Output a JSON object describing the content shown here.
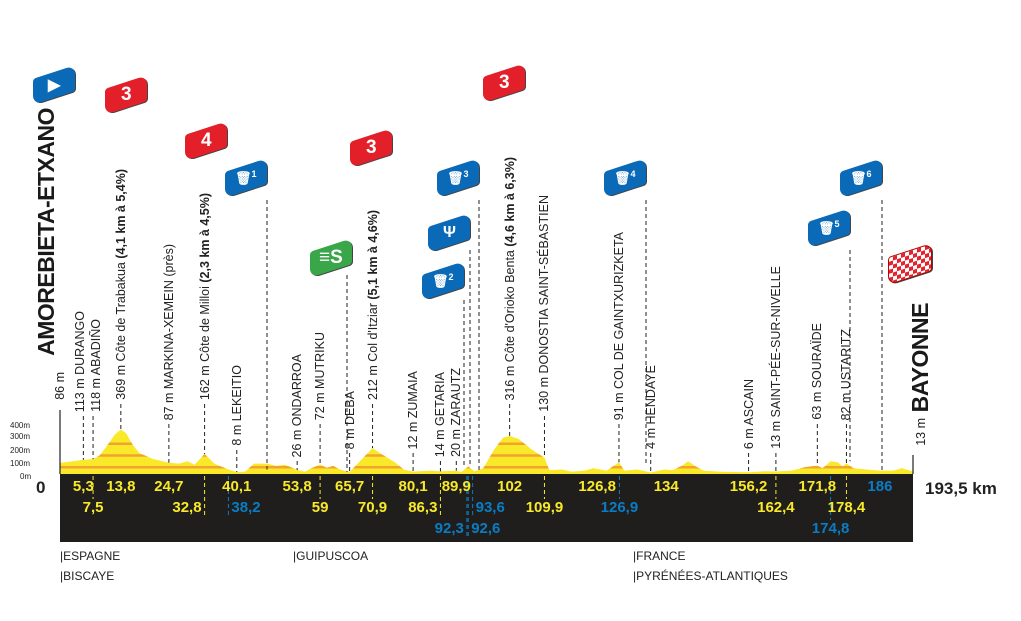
{
  "chart_data": {
    "type": "area",
    "title": "",
    "xlabel": "",
    "ylabel": "",
    "xlim": [
      0,
      193.5
    ],
    "ylim": [
      0,
      400
    ],
    "y_ticks": [
      "400m",
      "300m",
      "200m",
      "100m",
      "0m"
    ],
    "x_start_label": "0",
    "x_end_label": "193,5 km",
    "colors": {
      "profile": "#f9e928",
      "climb_band": "#f2a22f",
      "band": "#1f1e1c",
      "km_yellow": "#f9e928",
      "km_blue": "#0a7cc4",
      "kom": "#e3202a",
      "service": "#0a6ab8",
      "sprint": "#3aa64a"
    },
    "profile": [
      [
        0,
        86
      ],
      [
        3,
        100
      ],
      [
        5.3,
        113
      ],
      [
        7.5,
        118
      ],
      [
        9,
        150
      ],
      [
        11,
        250
      ],
      [
        12.5,
        330
      ],
      [
        13.8,
        369
      ],
      [
        15,
        340
      ],
      [
        16.5,
        240
      ],
      [
        18,
        170
      ],
      [
        21,
        120
      ],
      [
        24.7,
        87
      ],
      [
        27,
        80
      ],
      [
        29,
        100
      ],
      [
        30.5,
        70
      ],
      [
        32.8,
        162
      ],
      [
        35,
        80
      ],
      [
        38.2,
        30
      ],
      [
        40.1,
        8
      ],
      [
        42,
        12
      ],
      [
        44,
        80
      ],
      [
        47,
        80
      ],
      [
        49,
        60
      ],
      [
        51,
        70
      ],
      [
        53.8,
        26
      ],
      [
        55.5,
        10
      ],
      [
        57,
        40
      ],
      [
        59,
        72
      ],
      [
        60.5,
        45
      ],
      [
        62,
        60
      ],
      [
        63.5,
        30
      ],
      [
        65.7,
        8
      ],
      [
        67.5,
        80
      ],
      [
        70.9,
        212
      ],
      [
        73,
        160
      ],
      [
        76,
        90
      ],
      [
        78,
        30
      ],
      [
        80.1,
        12
      ],
      [
        84,
        20
      ],
      [
        86.3,
        14
      ],
      [
        89.9,
        20
      ],
      [
        91,
        8
      ],
      [
        92.6,
        55
      ],
      [
        94,
        15
      ],
      [
        96,
        40
      ],
      [
        98.5,
        200
      ],
      [
        100.5,
        300
      ],
      [
        102,
        316
      ],
      [
        104,
        290
      ],
      [
        107,
        200
      ],
      [
        109.9,
        130
      ],
      [
        111,
        25
      ],
      [
        114,
        30
      ],
      [
        116,
        10
      ],
      [
        119,
        20
      ],
      [
        121,
        40
      ],
      [
        124,
        20
      ],
      [
        126.8,
        91
      ],
      [
        128,
        20
      ],
      [
        131,
        30
      ],
      [
        134,
        4
      ],
      [
        137,
        30
      ],
      [
        139,
        25
      ],
      [
        141,
        60
      ],
      [
        142.5,
        100
      ],
      [
        144,
        60
      ],
      [
        146,
        20
      ],
      [
        150,
        10
      ],
      [
        156.2,
        6
      ],
      [
        160,
        15
      ],
      [
        162.4,
        13
      ],
      [
        166,
        20
      ],
      [
        169,
        50
      ],
      [
        171.8,
        63
      ],
      [
        173,
        40
      ],
      [
        174.8,
        100
      ],
      [
        176.5,
        90
      ],
      [
        177.5,
        55
      ],
      [
        178.4,
        82
      ],
      [
        180,
        40
      ],
      [
        183,
        30
      ],
      [
        186,
        20
      ],
      [
        189,
        20
      ],
      [
        191,
        40
      ],
      [
        193.5,
        13
      ]
    ],
    "points": [
      {
        "km": 0,
        "alt": "86 m",
        "name": "AMOREBIETA-ETXANO",
        "type": "start"
      },
      {
        "km": 5.3,
        "text": "113 m DURANGO"
      },
      {
        "km": 7.5,
        "text": "118 m ABADIÑO"
      },
      {
        "km": 13.8,
        "text": "369 m Côte de Trabakua",
        "climb": "(4,1 km à 5,4%)",
        "category": "3"
      },
      {
        "km": 24.7,
        "text": "87 m MARKINA-XEMEIN (près)"
      },
      {
        "km": 32.8,
        "text": "162 m Côte de Milloi",
        "climb": "(2,3 km à 4,5%)",
        "category": "4"
      },
      {
        "km": 40.1,
        "text": "8 m LEKEITIO"
      },
      {
        "km": 53.8,
        "text": "26 m ONDARROA"
      },
      {
        "km": 59,
        "text": "72 m MUTRIKU"
      },
      {
        "km": 65.7,
        "text": "8 m DEBA"
      },
      {
        "km": 70.9,
        "text": "212 m Col d'Itziar",
        "climb": "(5,1 km à 4,6%)",
        "category": "3"
      },
      {
        "km": 80.1,
        "text": "12 m ZUMAIA"
      },
      {
        "km": 86.3,
        "text": "14 m GETARIA"
      },
      {
        "km": 89.9,
        "text": "20 m ZARAUTZ"
      },
      {
        "km": 102,
        "text": "316 m Côte d'Orioko Benta",
        "climb": "(4,6 km à 6,3%)",
        "category": "3"
      },
      {
        "km": 109.9,
        "text": "130 m DONOSTIA SAINT-SÉBASTIEN"
      },
      {
        "km": 126.8,
        "text": "91 m COL DE GAINTXURIZKETA"
      },
      {
        "km": 134,
        "text": "4 m HENDAYE"
      },
      {
        "km": 156.2,
        "text": "6 m ASCAIN"
      },
      {
        "km": 162.4,
        "text": "13 m SAINT-PÉE-SUR-NIVELLE"
      },
      {
        "km": 171.8,
        "text": "63 m SOURAÏDE"
      },
      {
        "km": 178.4,
        "text": "82 m USTARITZ"
      },
      {
        "km": 193.5,
        "alt": "13 m",
        "name": "BAYONNE",
        "type": "finish"
      }
    ],
    "km_labels": [
      {
        "v": "5,3",
        "km": 5.3,
        "row": 1,
        "c": "y"
      },
      {
        "v": "13,8",
        "km": 13.8,
        "row": 1,
        "c": "y"
      },
      {
        "v": "24,7",
        "km": 24.7,
        "row": 1,
        "c": "y"
      },
      {
        "v": "40,1",
        "km": 40.1,
        "row": 1,
        "c": "y"
      },
      {
        "v": "53,8",
        "km": 53.8,
        "row": 1,
        "c": "y"
      },
      {
        "v": "65,7",
        "km": 65.7,
        "row": 1,
        "c": "y"
      },
      {
        "v": "80,1",
        "km": 80.1,
        "row": 1,
        "c": "y"
      },
      {
        "v": "89,9",
        "km": 89.9,
        "row": 1,
        "c": "y"
      },
      {
        "v": "102",
        "km": 102,
        "row": 1,
        "c": "y"
      },
      {
        "v": "126,8",
        "km": 126.8,
        "row": 1,
        "c": "y"
      },
      {
        "v": "134",
        "km": 134,
        "row": 1,
        "c": "y"
      },
      {
        "v": "156,2",
        "km": 156.2,
        "row": 1,
        "c": "y"
      },
      {
        "v": "171,8",
        "km": 171.8,
        "row": 1,
        "c": "y"
      },
      {
        "v": "186",
        "km": 186,
        "row": 1,
        "c": "b"
      },
      {
        "v": "7,5",
        "km": 7.5,
        "row": 2,
        "c": "y"
      },
      {
        "v": "32,8",
        "km": 32.8,
        "row": 2,
        "c": "y"
      },
      {
        "v": "38,2",
        "km": 38.2,
        "row": 2,
        "c": "b"
      },
      {
        "v": "59",
        "km": 59,
        "row": 2,
        "c": "y"
      },
      {
        "v": "70,9",
        "km": 70.9,
        "row": 2,
        "c": "y"
      },
      {
        "v": "86,3",
        "km": 86.3,
        "row": 2,
        "c": "y"
      },
      {
        "v": "93,6",
        "km": 93.6,
        "row": 2,
        "c": "b"
      },
      {
        "v": "109,9",
        "km": 109.9,
        "row": 2,
        "c": "y"
      },
      {
        "v": "126,9",
        "km": 126.9,
        "row": 2,
        "c": "b"
      },
      {
        "v": "162,4",
        "km": 162.4,
        "row": 2,
        "c": "y"
      },
      {
        "v": "178,4",
        "km": 178.4,
        "row": 2,
        "c": "y"
      },
      {
        "v": "92,3",
        "km": 92.3,
        "row": 3,
        "c": "b"
      },
      {
        "v": "92,6",
        "km": 92.6,
        "row": 3,
        "c": "b"
      },
      {
        "v": "174,8",
        "km": 174.8,
        "row": 3,
        "c": "b"
      }
    ],
    "markers": [
      {
        "kind": "start-flag",
        "icon": "play-triangle-icon"
      },
      {
        "kind": "kom",
        "label": "3",
        "km": 13.8
      },
      {
        "kind": "kom",
        "label": "4",
        "km": 32.8
      },
      {
        "kind": "kom",
        "label": "3",
        "km": 70.9
      },
      {
        "kind": "kom",
        "label": "3",
        "km": 102
      },
      {
        "kind": "sprint",
        "label": "S",
        "km": 65.7
      },
      {
        "kind": "waste-zone",
        "label": "1",
        "km": 38.2
      },
      {
        "kind": "waste-zone",
        "label": "2",
        "km": 92.3
      },
      {
        "kind": "feed-zone",
        "icon": "fork-knife-icon",
        "km": 92.6
      },
      {
        "kind": "waste-zone",
        "label": "3",
        "km": 93.6
      },
      {
        "kind": "waste-zone",
        "label": "4",
        "km": 126.9
      },
      {
        "kind": "waste-zone",
        "label": "5",
        "km": 174.8
      },
      {
        "kind": "waste-zone",
        "label": "6",
        "km": 186
      },
      {
        "kind": "finish-flag",
        "icon": "checkered-flag-icon"
      }
    ]
  },
  "regions": [
    {
      "lines": [
        "|ESPAGNE",
        "|BISCAYE"
      ]
    },
    {
      "lines": [
        "|GUIPUSCOA"
      ]
    },
    {
      "lines": [
        "|FRANCE",
        "|PYRÉNÉES-ATLANTIQUES"
      ]
    }
  ]
}
